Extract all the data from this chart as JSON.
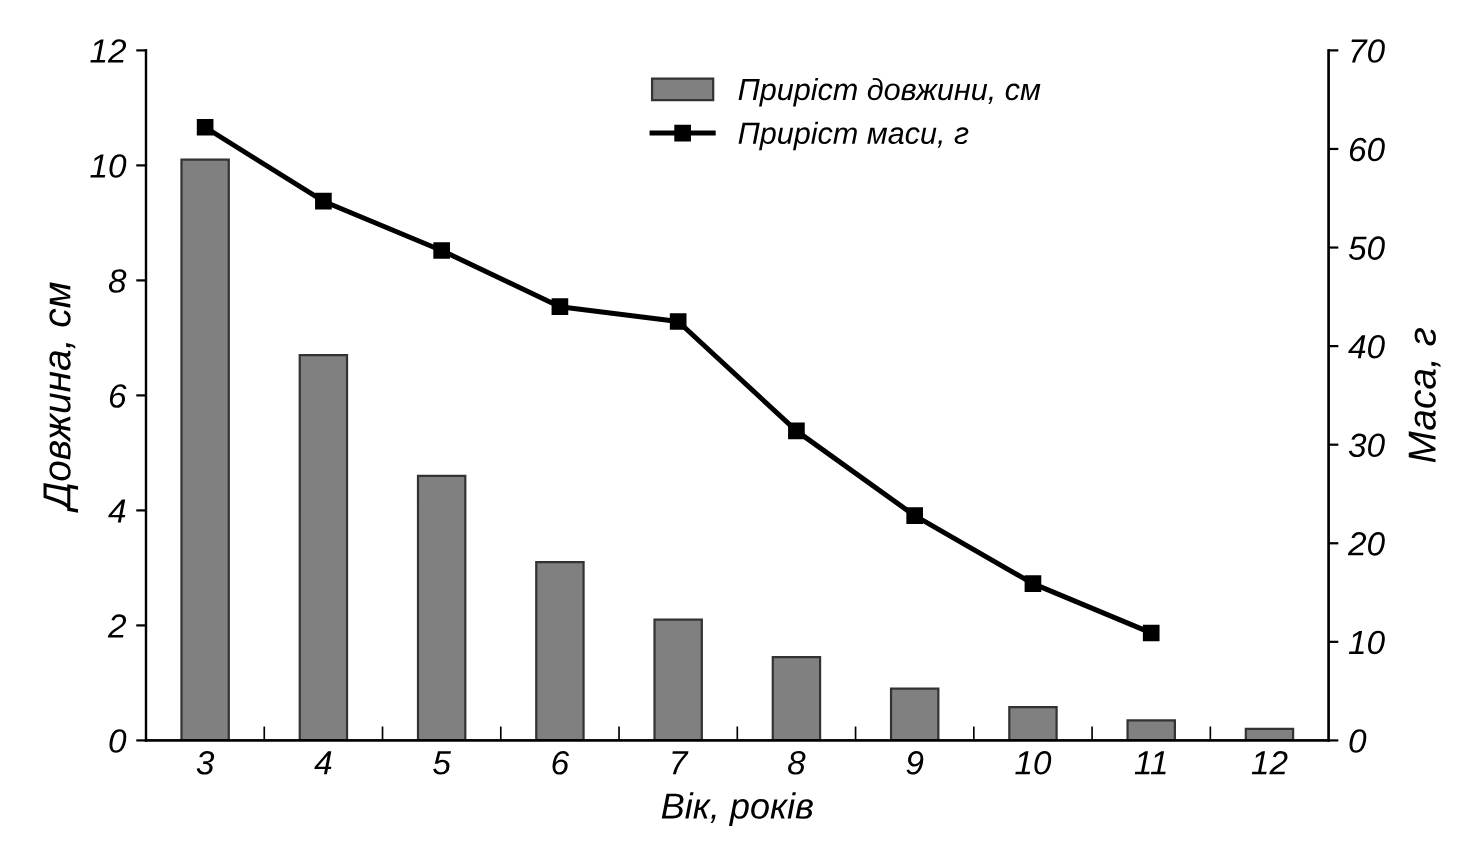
{
  "chart_data": {
    "type": "bar",
    "xlabel": "Вік, років",
    "ylabel": "Довжина, см",
    "y2label": "Маса, г",
    "categories": [
      "3",
      "4",
      "5",
      "6",
      "7",
      "8",
      "9",
      "10",
      "11",
      "12"
    ],
    "series": [
      {
        "name": "Приріст довжини, см",
        "color": "#808080",
        "values": [
          10.1,
          6.7,
          4.6,
          3.1,
          2.1,
          1.45,
          0.9,
          0.58,
          0.35,
          0.2
        ]
      },
      {
        "name": "Приріст маси, г",
        "type": "line",
        "axis": "y2",
        "color": "#000000",
        "marker": "square",
        "values": [
          62.2,
          54.7,
          49.7,
          44.0,
          42.5,
          31.4,
          22.8,
          15.9,
          10.9,
          null
        ]
      }
    ],
    "ylim": [
      0,
      12
    ],
    "yticks": [
      0,
      2,
      4,
      6,
      8,
      10,
      12
    ],
    "y2lim": [
      0,
      70
    ],
    "y2ticks": [
      0,
      10,
      20,
      30,
      40,
      50,
      60,
      70
    ],
    "grid": false,
    "legend": "top right"
  }
}
